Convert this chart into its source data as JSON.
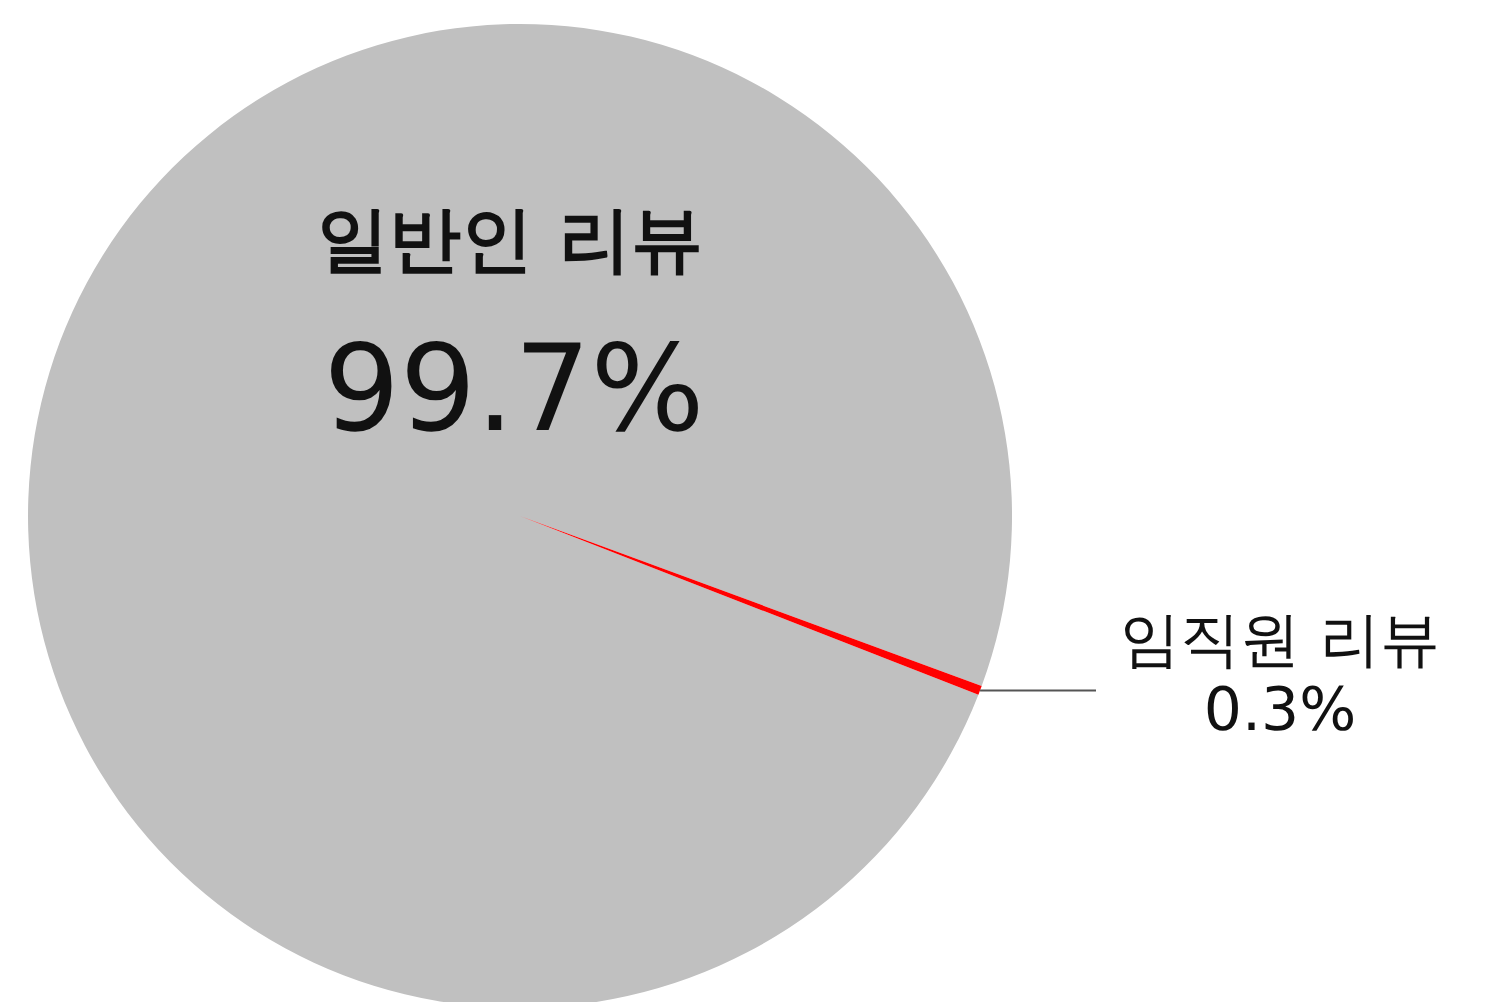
{
  "chart_data": {
    "type": "pie",
    "categories": [
      "일반인 리뷰",
      "임직원 리뷰"
    ],
    "values": [
      99.7,
      0.3
    ],
    "colors": [
      "#c0c0c0",
      "#ff0000"
    ],
    "value_labels": [
      "99.7%",
      "0.3%"
    ]
  }
}
